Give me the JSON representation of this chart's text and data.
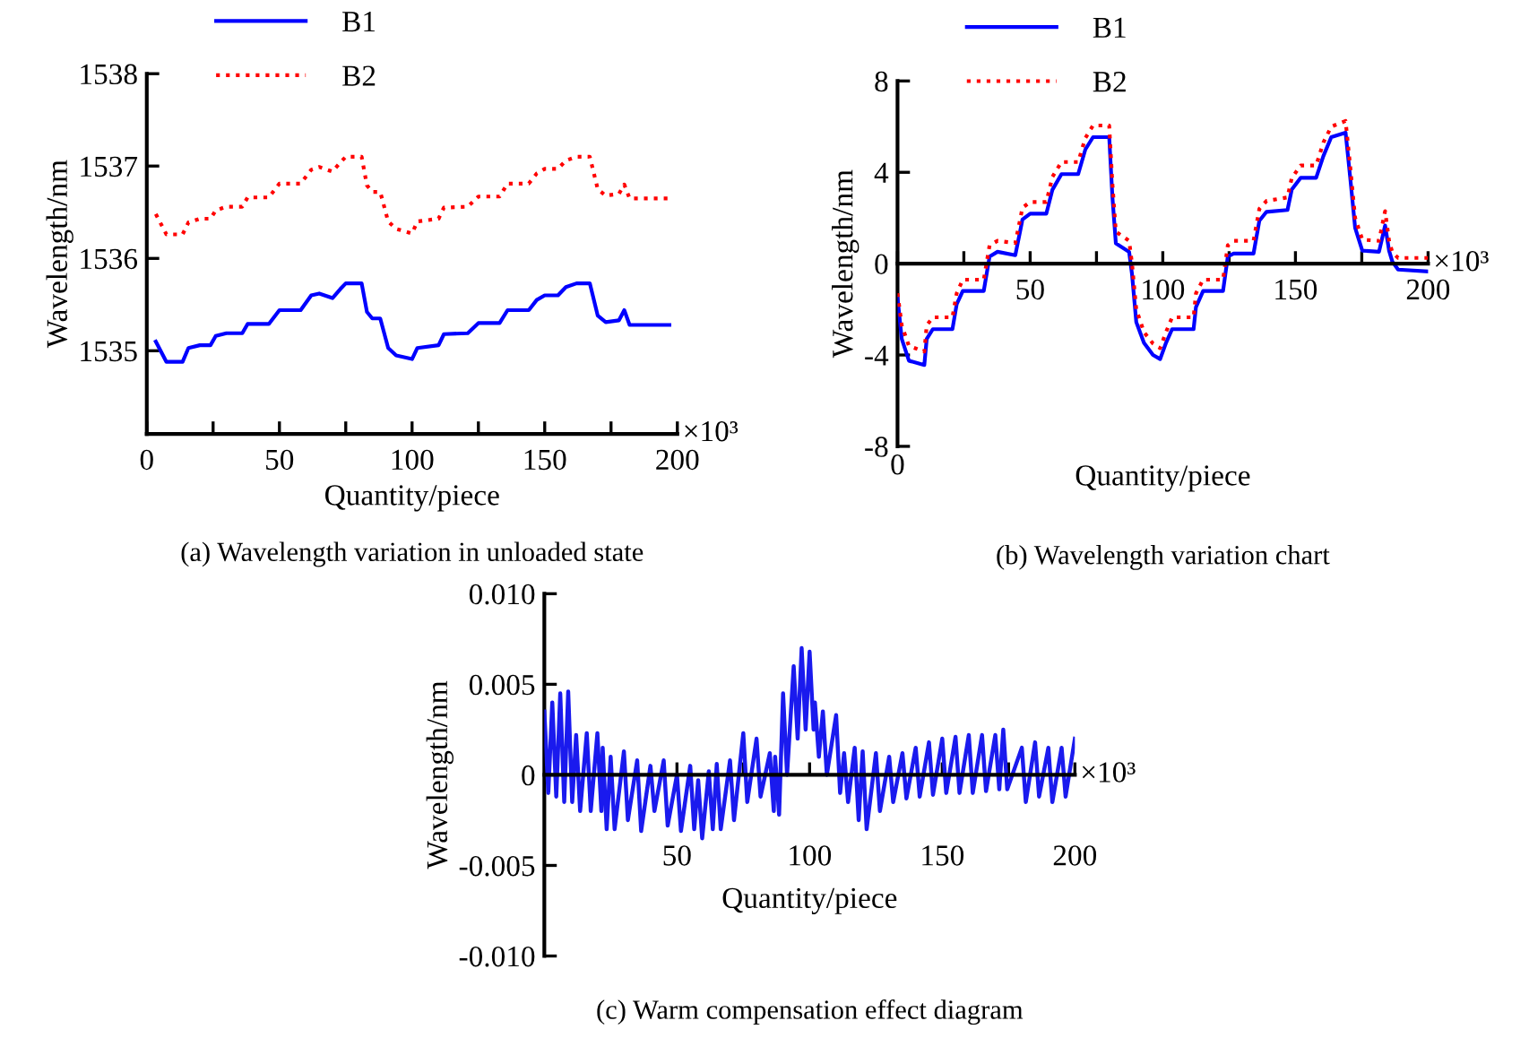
{
  "chart_data": [
    {
      "type": "line",
      "title": "(a) Wavelength variation in unloaded state",
      "xlabel": "Quantity/piece",
      "ylabel": "Wavelength/nm",
      "annotations": [
        "×10³"
      ],
      "xlim": [
        0,
        200
      ],
      "ylim": [
        1534.1,
        1538
      ],
      "xticks": [
        0,
        {
          "value": 25,
          "label": null
        },
        50,
        {
          "value": 75,
          "label": null
        },
        100,
        {
          "value": 125,
          "label": null
        },
        150,
        {
          "value": 175,
          "label": null
        },
        200
      ],
      "yticks": [
        1535,
        1536,
        1537,
        1538
      ],
      "legend": "top",
      "grid": false,
      "series": [
        {
          "name": "B1",
          "color": "#0000ff",
          "line_style": "solid",
          "x": [
            3.4,
            7.4,
            13.5,
            15.7,
            20,
            24,
            26,
            30,
            36,
            38,
            46,
            50,
            58,
            62,
            65,
            70,
            73,
            75,
            81,
            83,
            85,
            88,
            91,
            94,
            100,
            102,
            110,
            112,
            121,
            125,
            133,
            136,
            144,
            147,
            150,
            155,
            158,
            162,
            167,
            170,
            173,
            178,
            180,
            182,
            197
          ],
          "values": [
            1535.1,
            1534.88,
            1534.88,
            1535.03,
            1535.06,
            1535.06,
            1535.16,
            1535.19,
            1535.19,
            1535.29,
            1535.29,
            1535.44,
            1535.44,
            1535.6,
            1535.62,
            1535.57,
            1535.67,
            1535.73,
            1535.73,
            1535.42,
            1535.35,
            1535.35,
            1535.03,
            1534.95,
            1534.91,
            1535.03,
            1535.06,
            1535.18,
            1535.19,
            1535.3,
            1535.3,
            1535.44,
            1535.44,
            1535.55,
            1535.6,
            1535.6,
            1535.69,
            1535.73,
            1535.73,
            1535.38,
            1535.31,
            1535.33,
            1535.44,
            1535.28,
            1535.28
          ]
        },
        {
          "name": "B2",
          "color": "#ff0000",
          "line_style": "dotted",
          "x": [
            3.4,
            7.4,
            13.5,
            15.7,
            20,
            24,
            26,
            30,
            36,
            38,
            46,
            50,
            58,
            62,
            65,
            70,
            73,
            75,
            81,
            83,
            85,
            88,
            91,
            94,
            100,
            102,
            110,
            112,
            121,
            125,
            133,
            136,
            144,
            147,
            150,
            155,
            158,
            162,
            167,
            170,
            173,
            178,
            180,
            182,
            197
          ],
          "values": [
            1536.48,
            1536.26,
            1536.26,
            1536.39,
            1536.43,
            1536.43,
            1536.52,
            1536.56,
            1536.56,
            1536.66,
            1536.66,
            1536.81,
            1536.81,
            1536.96,
            1536.99,
            1536.94,
            1537.04,
            1537.1,
            1537.1,
            1536.79,
            1536.72,
            1536.72,
            1536.4,
            1536.32,
            1536.27,
            1536.4,
            1536.43,
            1536.55,
            1536.56,
            1536.67,
            1536.67,
            1536.81,
            1536.81,
            1536.92,
            1536.97,
            1536.97,
            1537.06,
            1537.1,
            1537.1,
            1536.75,
            1536.68,
            1536.7,
            1536.8,
            1536.65,
            1536.65
          ]
        }
      ]
    },
    {
      "type": "line",
      "title": "(b) Wavelength variation chart",
      "xlabel": "Quantity/piece",
      "ylabel": "Wavelength/nm",
      "annotations": [
        "×10³",
        "0"
      ],
      "xlim": [
        0,
        200
      ],
      "ylim": [
        -8,
        8
      ],
      "xticks": [
        {
          "value": 0,
          "label": null
        },
        {
          "value": 25,
          "label": null
        },
        50,
        {
          "value": 75,
          "label": null
        },
        100,
        {
          "value": 125,
          "label": null
        },
        150,
        {
          "value": 175,
          "label": null
        },
        200
      ],
      "yticks": [
        -8,
        -4,
        0,
        4,
        8
      ],
      "legend": "top",
      "grid": false,
      "series": [
        {
          "name": "B1",
          "color": "#0000ff",
          "line_style": "solid",
          "x": [
            0,
            1.6,
            4.3,
            10.1,
            11,
            13.3,
            20.7,
            22.3,
            24.6,
            32.5,
            34.7,
            37.7,
            44.4,
            47.1,
            50,
            56.1,
            58.4,
            61.8,
            68.1,
            70.8,
            73.7,
            79.8,
            81,
            82.3,
            87.3,
            88.4,
            90,
            92.9,
            96.3,
            99,
            101.2,
            103.5,
            111.6,
            112.5,
            115.2,
            122.7,
            124.5,
            126.7,
            134.2,
            136.4,
            139.1,
            147,
            148.6,
            152,
            157.8,
            160.5,
            163.5,
            168.9,
            170.7,
            172.5,
            175.2,
            181.5,
            183.8,
            185.3,
            186.5,
            188.7,
            200
          ],
          "values": [
            -1.5,
            -3.3,
            -4.25,
            -4.44,
            -3.3,
            -2.87,
            -2.87,
            -1.78,
            -1.2,
            -1.2,
            0.31,
            0.52,
            0.37,
            1.93,
            2.19,
            2.19,
            3.24,
            3.92,
            3.92,
            5.0,
            5.54,
            5.54,
            2.92,
            0.89,
            0.52,
            -0.47,
            -2.56,
            -3.47,
            -4.0,
            -4.18,
            -3.47,
            -2.87,
            -2.87,
            -1.9,
            -1.2,
            -1.2,
            0.31,
            0.44,
            0.44,
            1.88,
            2.27,
            2.35,
            3.24,
            3.76,
            3.76,
            4.7,
            5.54,
            5.74,
            3.7,
            1.57,
            0.57,
            0.52,
            1.67,
            0.57,
            0.1,
            -0.26,
            -0.34
          ]
        },
        {
          "name": "B2",
          "color": "#ff0000",
          "line_style": "dotted",
          "x": [
            0,
            1.6,
            4.3,
            10.1,
            11,
            13.3,
            20.7,
            22.3,
            24.6,
            32.5,
            34.7,
            37.7,
            44.4,
            47.1,
            50,
            56.1,
            58.4,
            61.8,
            68.1,
            70.8,
            73.7,
            79.8,
            81,
            82.3,
            87.3,
            88.4,
            90,
            92.9,
            96.3,
            99,
            101.2,
            103.5,
            111.6,
            112.5,
            115.2,
            122.7,
            124.5,
            126.7,
            134.2,
            136.4,
            139.1,
            147,
            148.6,
            152,
            157.8,
            160.5,
            163.5,
            168.9,
            170.7,
            172.5,
            175.2,
            181.5,
            183.8,
            185.3,
            186.5,
            188.7,
            200
          ],
          "values": [
            -1.3,
            -2.7,
            -3.6,
            -3.85,
            -2.7,
            -2.35,
            -2.35,
            -1.3,
            -0.7,
            -0.7,
            0.8,
            1.0,
            0.9,
            2.45,
            2.7,
            2.7,
            3.8,
            4.45,
            4.45,
            5.5,
            6.05,
            6.05,
            3.5,
            1.4,
            1.0,
            0,
            -2.0,
            -3.0,
            -3.5,
            -3.7,
            -3.0,
            -2.35,
            -2.35,
            -1.3,
            -0.7,
            -0.7,
            0.8,
            1.0,
            1.0,
            2.4,
            2.75,
            2.9,
            3.75,
            4.3,
            4.3,
            5.3,
            6.0,
            6.25,
            4.2,
            2.0,
            1.05,
            1.0,
            2.3,
            1.0,
            0.5,
            0.25,
            0.25
          ]
        }
      ]
    },
    {
      "type": "line",
      "title": "(c) Warm compensation effect diagram",
      "xlabel": "Quantity/piece",
      "ylabel": "Wavelength/nm",
      "annotations": [
        "×10³"
      ],
      "xlim": [
        0,
        200
      ],
      "ylim": [
        -0.01,
        0.01
      ],
      "xticks": [
        {
          "value": 25,
          "label": null
        },
        50,
        {
          "value": 75,
          "label": null
        },
        100,
        {
          "value": 125,
          "label": null
        },
        150,
        {
          "value": 175,
          "label": null
        },
        200
      ],
      "yticks": [
        {
          "value": -0.01,
          "label": "-0.010"
        },
        -0.005,
        0,
        0.005,
        {
          "value": 0.01,
          "label": "0.010"
        }
      ],
      "grid": false,
      "series": [
        {
          "color": "#1a1aee",
          "line_style": "solid",
          "x": [
            0,
            1.5,
            3,
            4.5,
            6,
            7.5,
            9,
            10.5,
            12,
            13.5,
            16,
            17.5,
            20,
            21.5,
            22,
            23.5,
            25,
            26.5,
            30,
            31.5,
            35,
            36.5,
            40,
            41.5,
            45,
            46.5,
            50,
            51.5,
            55,
            56.5,
            58,
            59.5,
            62,
            63.5,
            65,
            66.5,
            70,
            71.5,
            75,
            76.5,
            80,
            81.5,
            85,
            86.5,
            87,
            88.5,
            90,
            91.5,
            94,
            95.5,
            97,
            98.5,
            100,
            101.5,
            102,
            103.5,
            105,
            106.5,
            110,
            111.5,
            113,
            114.5,
            117,
            118.5,
            120,
            121.5,
            125,
            126.5,
            130,
            131.5,
            135,
            136.5,
            140,
            141.5,
            145,
            146.5,
            150,
            151.5,
            155,
            156.5,
            160,
            161.5,
            165,
            166.5,
            170,
            171.5,
            173,
            174.5,
            180,
            181.5,
            185,
            186.5,
            190,
            191.5,
            195,
            196.5,
            200
          ],
          "values": [
            0.0035,
            -0.001,
            0.004,
            -0.0012,
            0.0045,
            -0.0015,
            0.0046,
            -0.0015,
            0.0022,
            -0.002,
            0.0023,
            -0.002,
            0.0023,
            -0.002,
            0.0015,
            -0.003,
            0.001,
            -0.003,
            0.0013,
            -0.0025,
            0.0008,
            -0.0031,
            0.0005,
            -0.002,
            0.0008,
            -0.0028,
            0.0,
            -0.0031,
            0.0005,
            -0.003,
            -0.0003,
            -0.0035,
            0.0002,
            -0.003,
            0.0006,
            -0.003,
            0.0008,
            -0.0025,
            0.0023,
            -0.0015,
            0.002,
            -0.0012,
            0.0012,
            -0.002,
            0.001,
            -0.0022,
            0.0045,
            0.0,
            0.006,
            0.002,
            0.007,
            0.0025,
            0.0068,
            0.0025,
            0.004,
            0.001,
            0.0035,
            0.0,
            0.0033,
            -0.001,
            0.0012,
            -0.0015,
            0.0015,
            -0.0025,
            0.0013,
            -0.003,
            0.0012,
            -0.002,
            0.001,
            -0.0015,
            0.0012,
            -0.0013,
            0.0015,
            -0.0012,
            0.0018,
            -0.0011,
            0.002,
            -0.001,
            0.0021,
            -0.001,
            0.0022,
            -0.001,
            0.0022,
            -0.0009,
            0.0022,
            -0.0008,
            0.0025,
            -0.0008,
            0.0015,
            -0.0015,
            0.0018,
            -0.0012,
            0.0015,
            -0.0015,
            0.0015,
            -0.0012,
            0.002
          ]
        }
      ]
    }
  ]
}
